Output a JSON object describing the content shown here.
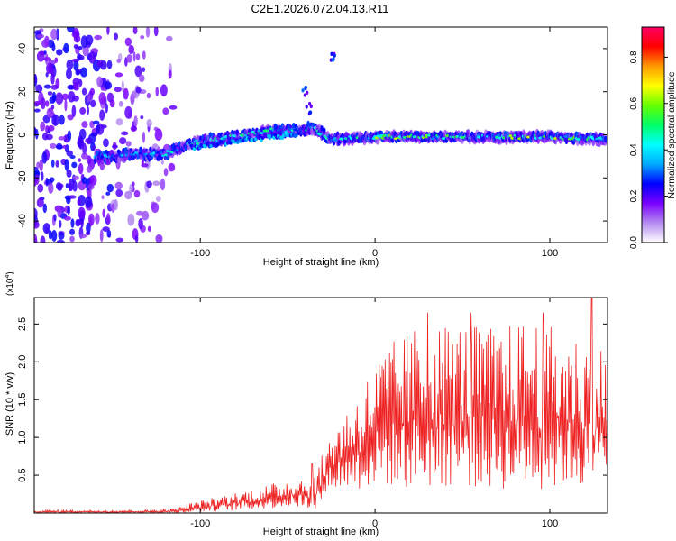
{
  "title": "C2E1.2026.072.04.13.R11",
  "chart_data": [
    {
      "type": "heatmap",
      "title": "C2E1.2026.072.04.13.R11",
      "xlabel": "Height of straight line (km)",
      "ylabel": "Frequency (Hz)",
      "xlim": [
        -195,
        133
      ],
      "ylim": [
        -50,
        50
      ],
      "x_ticks": [
        -100,
        0,
        100
      ],
      "x_tick_labels": [
        "-100",
        "0",
        "100"
      ],
      "y_ticks": [
        -40,
        -20,
        0,
        20,
        40
      ],
      "y_tick_labels": [
        "-40",
        "-20",
        "0",
        "20",
        "40"
      ],
      "colorbar": {
        "label": "Normalized spectral amplitude",
        "range": [
          0,
          0.93
        ],
        "ticks": [
          0.0,
          0.2,
          0.4,
          0.6,
          0.8
        ],
        "tick_labels": [
          "0.0",
          "0.2",
          "0.4",
          "0.6",
          "0.8"
        ],
        "stops": [
          "#ffffff",
          "#b48cf0",
          "#7a00ff",
          "#0000ff",
          "#00aaff",
          "#00ffff",
          "#00ff66",
          "#66ff00",
          "#ffff00",
          "#ff9900",
          "#ff0000",
          "#ff0066"
        ]
      },
      "noise_region_km": [
        -195,
        -112
      ],
      "ridge": [
        {
          "x": -160,
          "f": -11,
          "a": 0.35
        },
        {
          "x": -140,
          "f": -9,
          "a": 0.35
        },
        {
          "x": -120,
          "f": -9,
          "a": 0.4
        },
        {
          "x": -105,
          "f": -4,
          "a": 0.4
        },
        {
          "x": -90,
          "f": -2,
          "a": 0.45
        },
        {
          "x": -75,
          "f": 0,
          "a": 0.45
        },
        {
          "x": -60,
          "f": 2,
          "a": 0.45
        },
        {
          "x": -45,
          "f": 2,
          "a": 0.45
        },
        {
          "x": -35,
          "f": 3,
          "a": 0.45
        },
        {
          "x": -25,
          "f": -2,
          "a": 0.45
        },
        {
          "x": 0,
          "f": -1,
          "a": 0.6
        },
        {
          "x": 50,
          "f": -1,
          "a": 0.5
        },
        {
          "x": 100,
          "f": -1,
          "a": 0.6
        },
        {
          "x": 133,
          "f": -2,
          "a": 0.4
        }
      ],
      "ridge_branch": [
        {
          "x": -105,
          "f": -6
        },
        {
          "x": -80,
          "f": -3
        },
        {
          "x": -60,
          "f": -1
        },
        {
          "x": -45,
          "f": 0
        }
      ],
      "blobs": [
        {
          "x": -40,
          "f": 20,
          "a": 0.3
        },
        {
          "x": -24,
          "f": 36,
          "a": 0.3
        },
        {
          "x": -38,
          "f": 12,
          "a": 0.25
        }
      ]
    },
    {
      "type": "line",
      "xlabel": "Height of straight line (km)",
      "ylabel": "SNR (10 * v/v)",
      "y_multiplier_label": "(x10",
      "y_multiplier_exp": "4",
      "y_multiplier_close": ")",
      "xlim": [
        -195,
        133
      ],
      "ylim": [
        0,
        2.85
      ],
      "x_ticks": [
        -100,
        0,
        100
      ],
      "x_tick_labels": [
        "-100",
        "0",
        "100"
      ],
      "y_ticks": [
        0.5,
        1.0,
        1.5,
        2.0,
        2.5
      ],
      "y_tick_labels": [
        "0.5",
        "1.0",
        "1.5",
        "2.0",
        "2.5"
      ],
      "series": [
        {
          "name": "SNR",
          "color": "#ee2222",
          "envelope": [
            {
              "x": -195,
              "lo": 0.0,
              "hi": 0.04
            },
            {
              "x": -130,
              "lo": 0.0,
              "hi": 0.04
            },
            {
              "x": -115,
              "lo": 0.0,
              "hi": 0.06
            },
            {
              "x": -105,
              "lo": 0.01,
              "hi": 0.14
            },
            {
              "x": -90,
              "lo": 0.02,
              "hi": 0.22
            },
            {
              "x": -75,
              "lo": 0.04,
              "hi": 0.3
            },
            {
              "x": -60,
              "lo": 0.06,
              "hi": 0.38
            },
            {
              "x": -45,
              "lo": 0.08,
              "hi": 0.5
            },
            {
              "x": -35,
              "lo": 0.04,
              "hi": 0.48
            },
            {
              "x": -24,
              "lo": 0.3,
              "hi": 1.15
            },
            {
              "x": -10,
              "lo": 0.3,
              "hi": 1.6
            },
            {
              "x": 5,
              "lo": 0.35,
              "hi": 2.2
            },
            {
              "x": 25,
              "lo": 0.3,
              "hi": 2.5
            },
            {
              "x": 45,
              "lo": 0.35,
              "hi": 2.55
            },
            {
              "x": 70,
              "lo": 0.3,
              "hi": 2.45
            },
            {
              "x": 90,
              "lo": 0.3,
              "hi": 2.6
            },
            {
              "x": 110,
              "lo": 0.3,
              "hi": 2.4
            },
            {
              "x": 133,
              "lo": 0.4,
              "hi": 2.2
            }
          ],
          "peaks": [
            {
              "x": -36,
              "y": 0.65
            },
            {
              "x": 30,
              "y": 2.65
            },
            {
              "x": 55,
              "y": 2.65
            },
            {
              "x": 96,
              "y": 2.65
            },
            {
              "x": 124,
              "y": 2.85
            }
          ]
        }
      ]
    }
  ]
}
